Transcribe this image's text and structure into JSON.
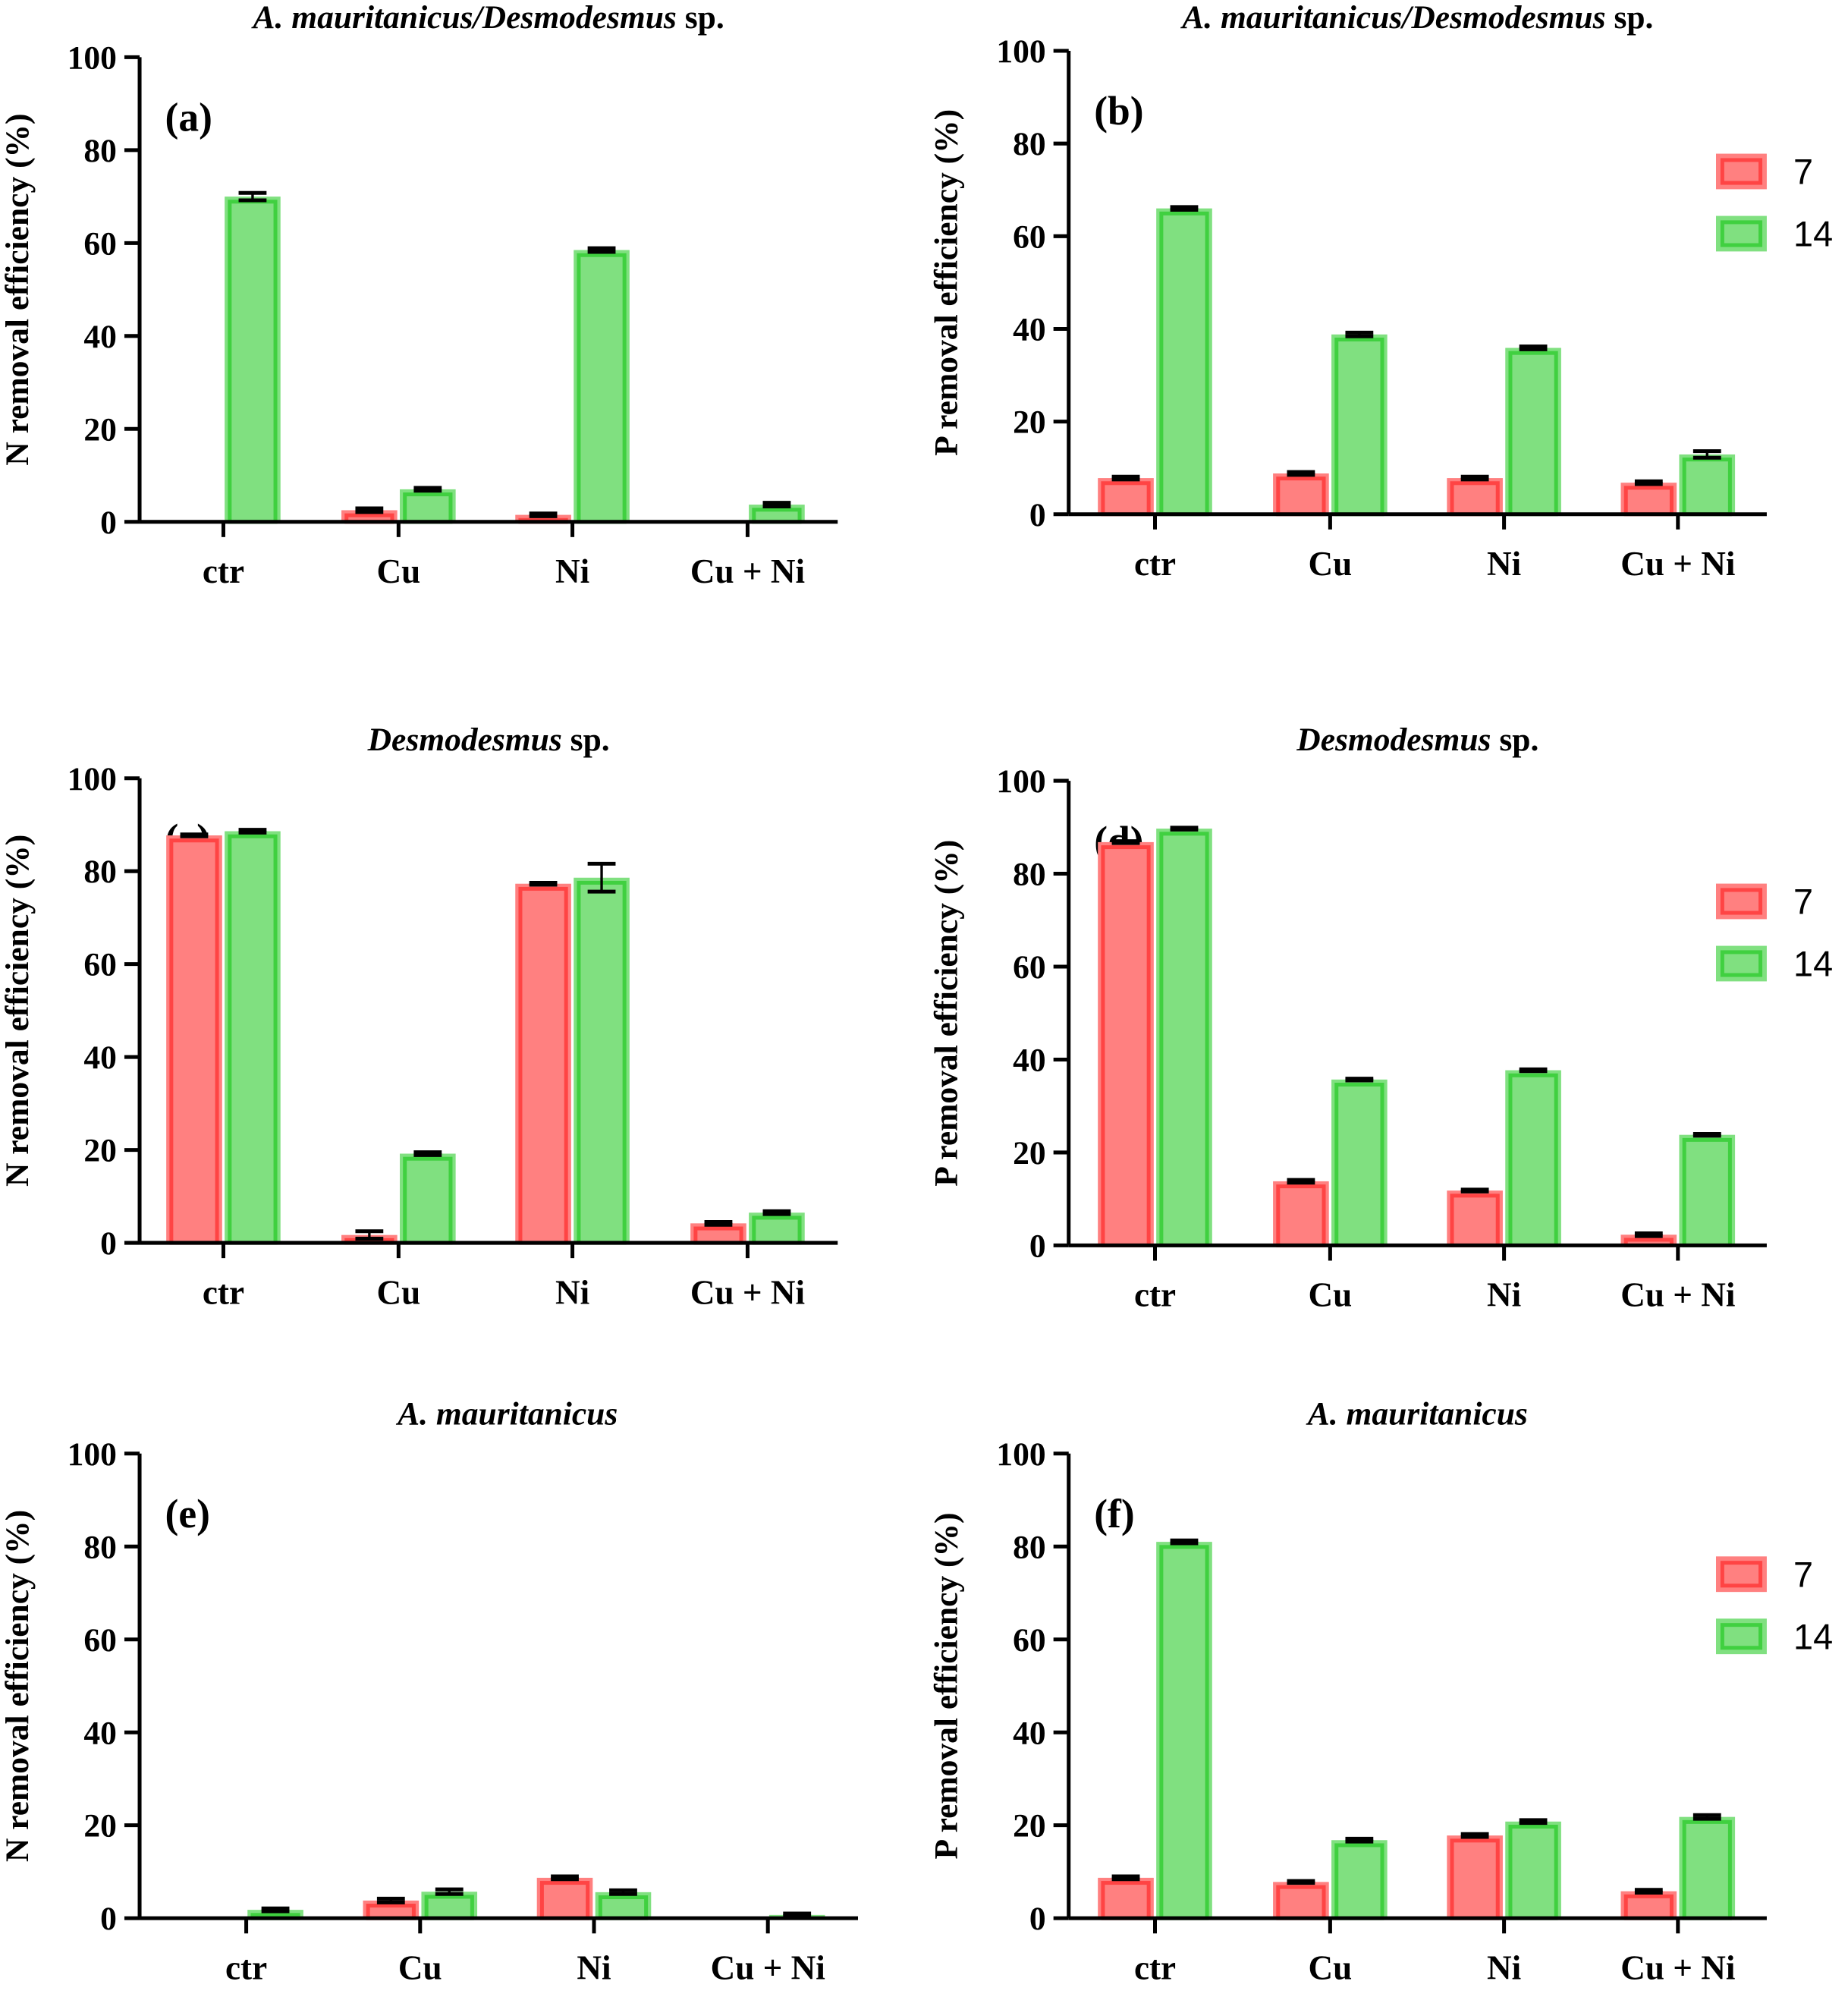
{
  "colors": {
    "day7_fill": "#ff8080",
    "day7_stroke": "#ff4444",
    "day14_fill": "#80e080",
    "day14_stroke": "#40d040"
  },
  "chart_data": [
    {
      "panel_label": "(a)",
      "type": "bar",
      "title_italic": "A. mauritanicus/Desmodesmus",
      "title_plain": " sp.",
      "ylabel": "N removal efficiency (%)",
      "ylim": [
        0,
        100
      ],
      "yticks": [
        "0",
        "20",
        "40",
        "60",
        "80",
        "100"
      ],
      "categories": [
        "ctr",
        "Cu",
        "Ni",
        "Cu + Ni"
      ],
      "legend": false,
      "series": [
        {
          "name": "7",
          "values": [
            0,
            2.5,
            1.5,
            0
          ],
          "errors": [
            0,
            0.4,
            0.3,
            0
          ]
        },
        {
          "name": "14",
          "values": [
            70,
            7,
            58.5,
            3.7
          ],
          "errors": [
            0.8,
            0.3,
            0.4,
            0.4
          ]
        }
      ]
    },
    {
      "panel_label": "(b)",
      "type": "bar",
      "title_italic": "A. mauritanicus/Desmodesmus",
      "title_plain": " sp.",
      "ylabel": "P removal efficiency (%)",
      "ylim": [
        0,
        100
      ],
      "yticks": [
        "0",
        "20",
        "40",
        "60",
        "80",
        "100"
      ],
      "categories": [
        "ctr",
        "Cu",
        "Ni",
        "Cu + Ni"
      ],
      "legend": true,
      "series": [
        {
          "name": "7",
          "values": [
            7.8,
            8.8,
            7.8,
            6.8
          ],
          "errors": [
            0.3,
            0.3,
            0.3,
            0.3
          ]
        },
        {
          "name": "14",
          "values": [
            66,
            38.8,
            35.9,
            12.9
          ],
          "errors": [
            0.3,
            0.4,
            0.3,
            0.7
          ]
        }
      ]
    },
    {
      "panel_label": "(c)",
      "type": "bar",
      "title_italic": "Desmodesmus",
      "title_plain": " sp.",
      "ylabel": "N removal efficiency (%)",
      "ylim": [
        0,
        100
      ],
      "yticks": [
        "0",
        "20",
        "40",
        "60",
        "80",
        "100"
      ],
      "categories": [
        "ctr",
        "Cu",
        "Ni",
        "Cu + Ni"
      ],
      "legend": false,
      "series": [
        {
          "name": "7",
          "values": [
            87.7,
            1.7,
            77.3,
            4.2
          ],
          "errors": [
            0.2,
            0.8,
            0.2,
            0.3
          ]
        },
        {
          "name": "14",
          "values": [
            88.6,
            19.2,
            78.6,
            6.5
          ],
          "errors": [
            0.3,
            0.3,
            3,
            0.3
          ]
        }
      ]
    },
    {
      "panel_label": "(d)",
      "type": "bar",
      "title_italic": "Desmodesmus",
      "title_plain": " sp.",
      "ylabel": "P removal efficiency (%)",
      "ylim": [
        0,
        100
      ],
      "yticks": [
        "0",
        "20",
        "40",
        "60",
        "80",
        "100"
      ],
      "categories": [
        "ctr",
        "Cu",
        "Ni",
        "Cu + Ni"
      ],
      "legend": true,
      "series": [
        {
          "name": "7",
          "values": [
            86.8,
            13.8,
            11.8,
            2.3
          ],
          "errors": [
            0.2,
            0.3,
            0.2,
            0.3
          ]
        },
        {
          "name": "14",
          "values": [
            89.7,
            35.7,
            37.7,
            23.8
          ],
          "errors": [
            0.2,
            0.2,
            0.2,
            0.2
          ]
        }
      ]
    },
    {
      "panel_label": "(e)",
      "type": "bar",
      "title_italic": "A. mauritanicus",
      "title_plain": "",
      "ylabel": "N removal efficiency (%)",
      "ylim": [
        0,
        100
      ],
      "yticks": [
        "0",
        "20",
        "40",
        "60",
        "80",
        "100"
      ],
      "categories": [
        "ctr",
        "Cu",
        "Ni",
        "Cu + Ni"
      ],
      "legend": false,
      "series": [
        {
          "name": "7",
          "values": [
            0,
            3.8,
            8.7,
            0
          ],
          "errors": [
            0,
            0.4,
            0.3,
            0
          ]
        },
        {
          "name": "14",
          "values": [
            1.8,
            5.7,
            5.6,
            0.7
          ],
          "errors": [
            0.3,
            0.5,
            0.4,
            0.3
          ]
        }
      ]
    },
    {
      "panel_label": "(f)",
      "type": "bar",
      "title_italic": "A. mauritanicus",
      "title_plain": "",
      "ylabel": "P removal efficiency (%)",
      "ylim": [
        0,
        100
      ],
      "yticks": [
        "0",
        "20",
        "40",
        "60",
        "80",
        "100"
      ],
      "categories": [
        "ctr",
        "Cu",
        "Ni",
        "Cu + Ni"
      ],
      "legend": true,
      "series": [
        {
          "name": "7",
          "values": [
            8.7,
            7.8,
            17.8,
            5.8
          ],
          "errors": [
            0.3,
            0.2,
            0.3,
            0.3
          ]
        },
        {
          "name": "14",
          "values": [
            81,
            16.8,
            20.8,
            21.8
          ],
          "errors": [
            0.3,
            0.3,
            0.3,
            0.4
          ]
        }
      ]
    }
  ]
}
